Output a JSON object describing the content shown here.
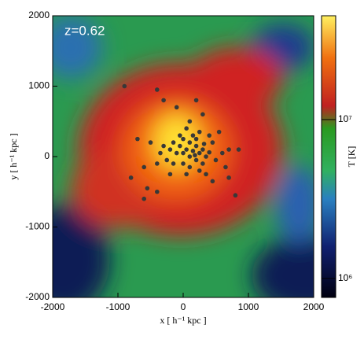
{
  "chart_data": {
    "type": "scatter",
    "annotation": "z=0.62",
    "x_label": "x [ h⁻¹ kpc ]",
    "y_label": "y [ h⁻¹ kpc ]",
    "colorbar_label": "T [K]",
    "xlim": [
      -2000,
      2000
    ],
    "ylim": [
      -2000,
      2000
    ],
    "xticks": [
      -2000,
      -1000,
      0,
      1000,
      2000
    ],
    "yticks": [
      -2000,
      -1000,
      0,
      1000,
      2000
    ],
    "clim": [
      760000,
      45000000
    ],
    "colorbar_log": true,
    "cticks": [
      {
        "value": 1000000,
        "label": "10⁶"
      },
      {
        "value": 10000000,
        "label": "10⁷"
      }
    ],
    "series": [
      {
        "color": "#383838",
        "x": [
          0,
          50,
          100,
          150,
          200,
          250,
          300,
          350,
          400,
          -50,
          -100,
          -150,
          -200,
          -300,
          -350,
          -400,
          -250,
          0,
          100,
          200,
          300,
          450,
          500,
          600,
          700,
          650,
          -600,
          -500,
          -700,
          150,
          250,
          50,
          -50,
          100,
          300,
          -100,
          -300,
          -900,
          550,
          700,
          800,
          -800,
          -550,
          -600,
          -400,
          50,
          350,
          200,
          -150,
          400,
          100,
          250,
          -200,
          0,
          180,
          320,
          -400,
          200,
          450,
          850
        ],
        "values": [
          50,
          100,
          0,
          80,
          150,
          50,
          100,
          0,
          60,
          150,
          50,
          200,
          100,
          150,
          50,
          -100,
          -50,
          -100,
          -150,
          -50,
          -100,
          200,
          -50,
          50,
          100,
          -150,
          -150,
          200,
          250,
          300,
          350,
          400,
          300,
          500,
          600,
          700,
          800,
          1000,
          350,
          -300,
          -550,
          -300,
          -450,
          -600,
          -500,
          -250,
          -250,
          250,
          -100,
          300,
          200,
          -200,
          -250,
          250,
          20,
          180,
          950,
          800,
          -350,
          100
        ]
      }
    ]
  }
}
